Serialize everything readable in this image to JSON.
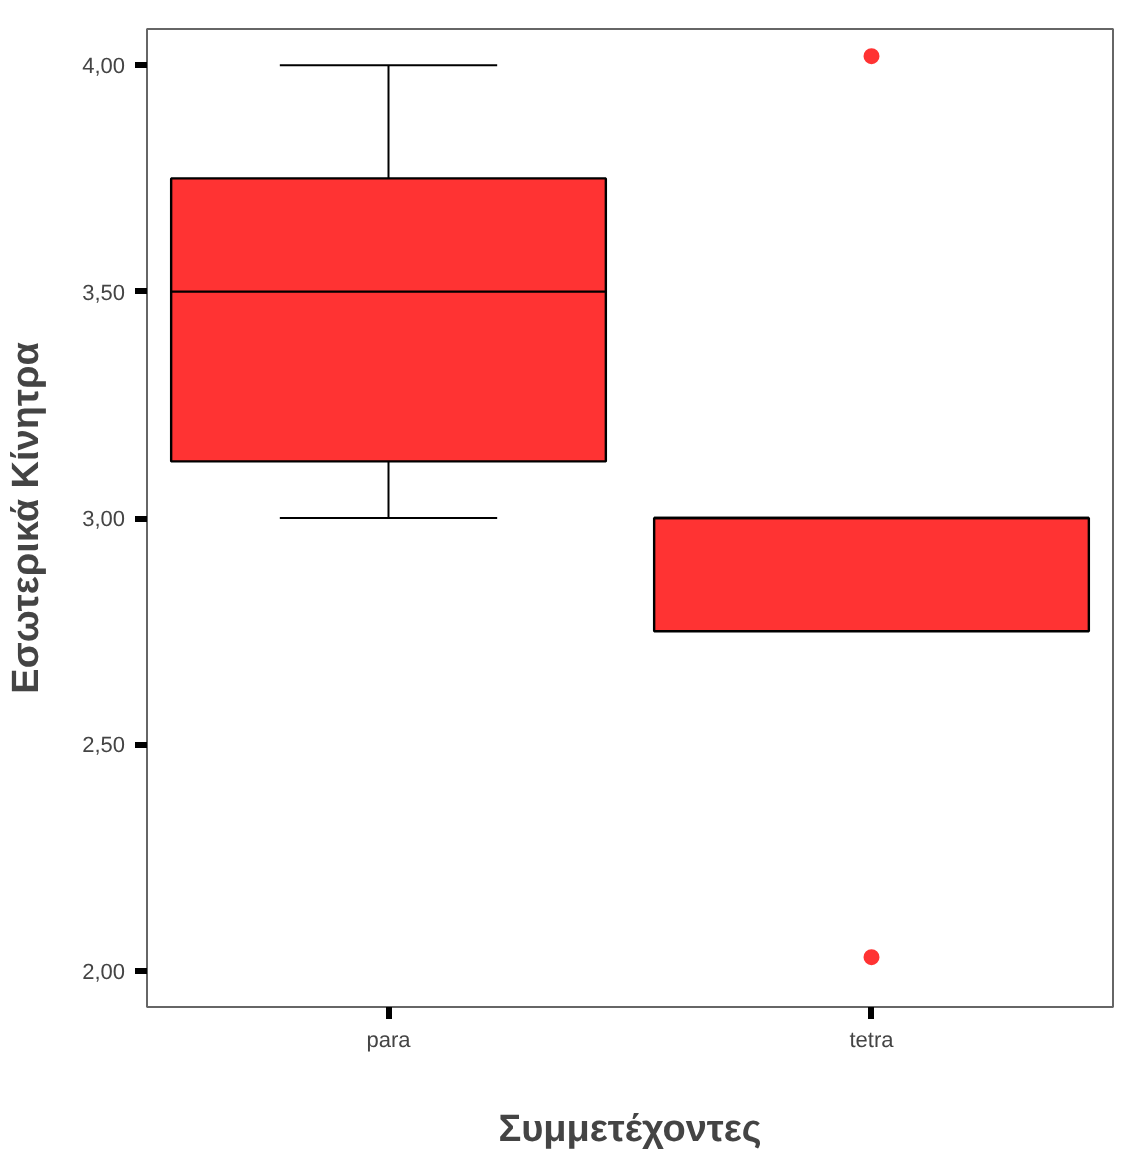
{
  "chart_data": {
    "type": "box",
    "xlabel": "Συμμετέχοντες",
    "ylabel": "Εσωτερικά Κίνητρα",
    "categories": [
      "para",
      "tetra"
    ],
    "series": [
      {
        "color": "#ff3333",
        "boxes": [
          {
            "low": 3.0,
            "q1": 3.125,
            "median": 3.5,
            "q3": 3.75,
            "high": 4.0
          },
          {
            "low": 2.75,
            "q1": 2.75,
            "median": 3.0,
            "q3": 3.0,
            "high": 3.0,
            "outliers": [
              4.02,
              2.03
            ]
          }
        ]
      }
    ],
    "ylim": [
      1.92,
      4.08
    ],
    "yticks": [
      {
        "value": 2.0,
        "label": "2,00"
      },
      {
        "value": 2.5,
        "label": "2,50"
      },
      {
        "value": 3.0,
        "label": "3,00"
      },
      {
        "value": 3.5,
        "label": "3,50"
      },
      {
        "value": 4.0,
        "label": "4,00"
      }
    ],
    "grid": false
  }
}
